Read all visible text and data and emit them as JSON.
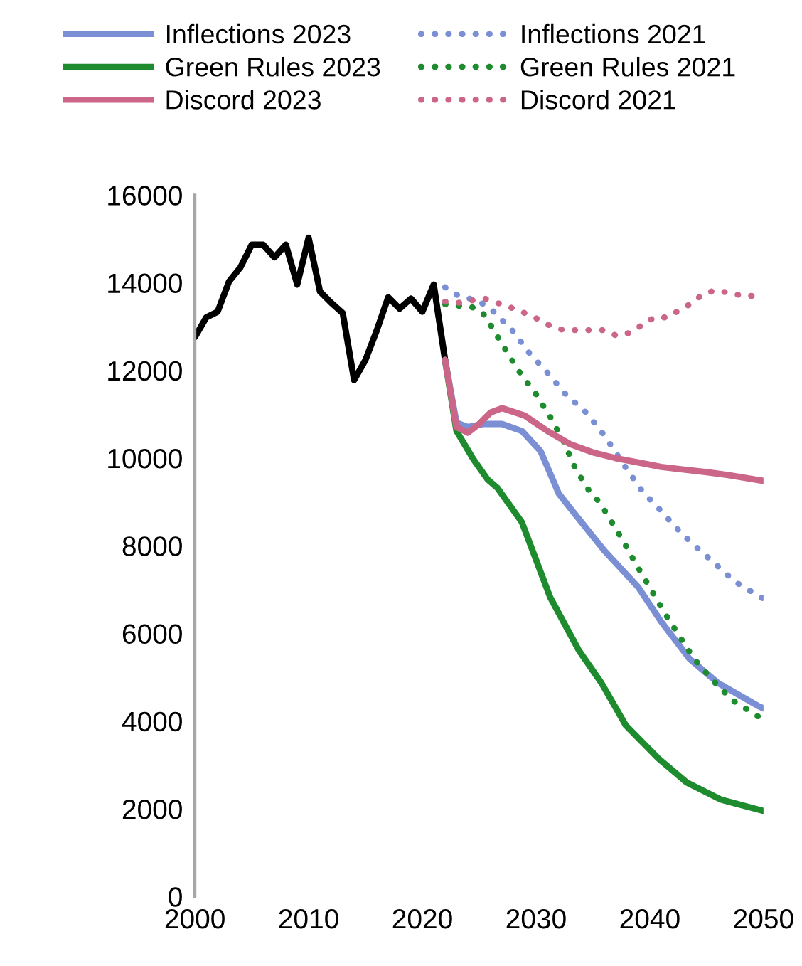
{
  "chart_data": {
    "type": "line",
    "legend": "top",
    "xlim": [
      2000,
      2050
    ],
    "xticks": [
      2000,
      2010,
      2020,
      2030,
      2040,
      2050
    ],
    "ylim": [
      0,
      16000
    ],
    "yticks": [
      0,
      2000,
      4000,
      6000,
      8000,
      10000,
      12000,
      14000,
      16000
    ],
    "grid": false,
    "series": [
      {
        "color": "#000000",
        "line_style": "solid",
        "x": [
          2000,
          2001,
          2002,
          2003,
          2004,
          2005,
          2006,
          2007,
          2008,
          2009,
          2010,
          2011,
          2012,
          2013,
          2014,
          2015,
          2016,
          2017,
          2018,
          2019,
          2020,
          2021,
          2022
        ],
        "values": [
          12760,
          13210,
          13340,
          14030,
          14350,
          14870,
          14870,
          14580,
          14870,
          13960,
          15030,
          13800,
          13540,
          13310,
          11780,
          12240,
          12920,
          13670,
          13410,
          13640,
          13340,
          13960,
          12240
        ]
      },
      {
        "name": "Inflections 2023",
        "color": "#7b8fd4",
        "line_style": "solid",
        "x": [
          2022,
          2023,
          2024,
          2025.4,
          2027,
          2028.75,
          2030.4,
          2032,
          2033,
          2036,
          2039,
          2041,
          2043.5,
          2046,
          2049.5,
          2050
        ],
        "values": [
          12240,
          10810,
          10710,
          10780,
          10780,
          10620,
          10160,
          9190,
          8860,
          7890,
          7050,
          6270,
          5420,
          4870,
          4350,
          4290
        ]
      },
      {
        "name": "Inflections 2021",
        "color": "#7b8fd4",
        "line_style": "dotted",
        "x": [
          2022,
          2023,
          2025,
          2026,
          2027,
          2028,
          2029.4,
          2031,
          2032.6,
          2034.4,
          2036,
          2038,
          2039.5,
          2040.4,
          2042.9,
          2044.75,
          2047.5,
          2050
        ],
        "values": [
          13900,
          13730,
          13570,
          13410,
          13150,
          12890,
          12400,
          11950,
          11460,
          11040,
          10520,
          9740,
          9190,
          8960,
          8250,
          7820,
          7180,
          6790
        ]
      },
      {
        "name": "Green Rules 2023",
        "color": "#1e8c2e",
        "line_style": "solid",
        "x": [
          2022,
          2023,
          2024.5,
          2025.75,
          2026.6,
          2028.75,
          2031.25,
          2033.75,
          2035.75,
          2037.9,
          2040.75,
          2043.25,
          2046.25,
          2050
        ],
        "values": [
          12240,
          10620,
          9970,
          9510,
          9320,
          8540,
          6820,
          5620,
          4870,
          3900,
          3150,
          2600,
          2210,
          1950
        ]
      },
      {
        "name": "Green Rules 2021",
        "color": "#1e8c2e",
        "line_style": "dotted",
        "x": [
          2022,
          2024.4,
          2025.25,
          2025.9,
          2027.25,
          2028.5,
          2030,
          2031.25,
          2032.4,
          2033.5,
          2034.75,
          2035.6,
          2037.5,
          2038.75,
          2040,
          2041.25,
          2042.6,
          2043.9,
          2045.5,
          2047.25,
          2050
        ],
        "values": [
          13510,
          13440,
          13340,
          13080,
          12500,
          11980,
          11460,
          10940,
          10390,
          9740,
          9220,
          8990,
          8180,
          7600,
          7050,
          6490,
          5940,
          5420,
          4940,
          4480,
          4030
        ]
      },
      {
        "name": "Discord 2023",
        "color": "#cc6688",
        "line_style": "solid",
        "x": [
          2022,
          2023,
          2024,
          2025,
          2026,
          2027,
          2029,
          2031,
          2033,
          2035,
          2037,
          2039,
          2041,
          2043,
          2045,
          2047,
          2050
        ],
        "values": [
          12240,
          10710,
          10580,
          10780,
          11040,
          11140,
          10970,
          10620,
          10320,
          10130,
          10000,
          9900,
          9800,
          9740,
          9680,
          9610,
          9480
        ]
      },
      {
        "name": "Discord 2021",
        "color": "#cc6688",
        "line_style": "dotted",
        "x": [
          2022,
          2023.1,
          2024.4,
          2025.5,
          2026.6,
          2027.75,
          2029,
          2030.1,
          2031.25,
          2032.4,
          2033.5,
          2034.75,
          2036,
          2037.1,
          2038.25,
          2039.4,
          2040.4,
          2041.6,
          2042.6,
          2043.75,
          2044.6,
          2045.75,
          2047,
          2048.25,
          2050
        ],
        "values": [
          13570,
          13540,
          13600,
          13640,
          13540,
          13440,
          13310,
          13180,
          13020,
          12920,
          12920,
          12920,
          12920,
          12790,
          12860,
          13050,
          13210,
          13210,
          13380,
          13540,
          13730,
          13830,
          13770,
          13700,
          13700
        ]
      }
    ]
  }
}
